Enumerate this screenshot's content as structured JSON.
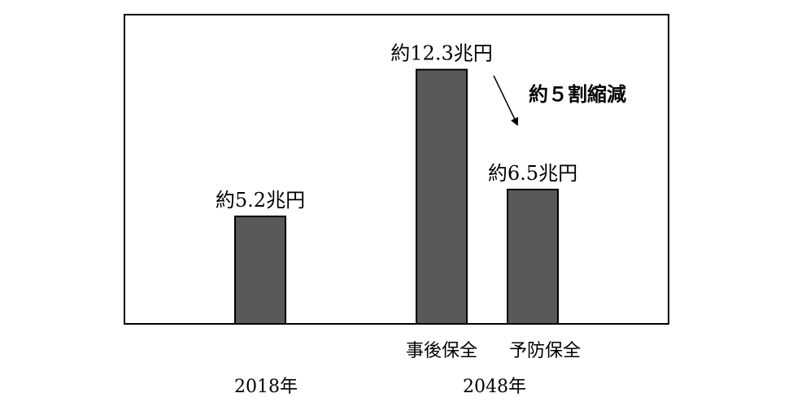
{
  "chart_data": {
    "type": "bar",
    "categories": [
      "2018年",
      "事後保全",
      "予防保全"
    ],
    "groups": [
      {
        "label": "2018年",
        "sub": [
          ""
        ]
      },
      {
        "label": "2048年",
        "sub": [
          "事後保全",
          "予防保全"
        ]
      }
    ],
    "values": [
      5.2,
      12.3,
      6.5
    ],
    "unit": "兆円",
    "data_labels": [
      "約5.2兆円",
      "約12.3兆円",
      "約6.5兆円"
    ],
    "annotation": "約５割縮減",
    "ylim": [
      0,
      14
    ],
    "grid": false,
    "bar_color": "#595959"
  }
}
